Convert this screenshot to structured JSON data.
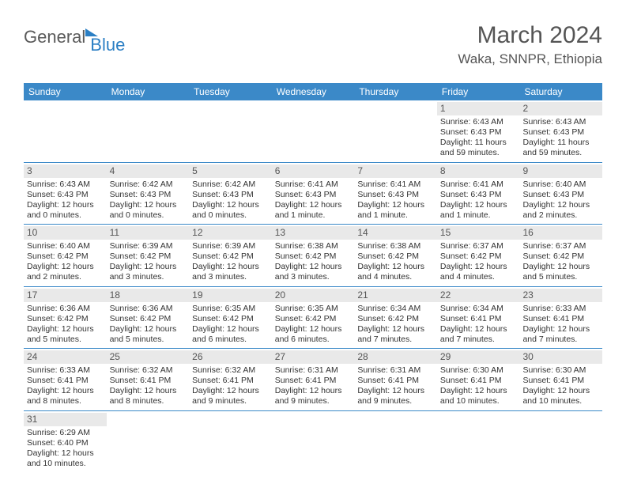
{
  "brand": {
    "part1": "General",
    "part2": "Blue"
  },
  "title": "March 2024",
  "location": "Waka, SNNPR, Ethiopia",
  "colors": {
    "header_bg": "#3b89c8",
    "header_text": "#ffffff",
    "daynum_bg": "#e9e9e9",
    "border": "#3b89c8",
    "text": "#333333",
    "title_text": "#555555"
  },
  "weekdays": [
    "Sunday",
    "Monday",
    "Tuesday",
    "Wednesday",
    "Thursday",
    "Friday",
    "Saturday"
  ],
  "weeks": [
    [
      {
        "n": "",
        "sr": "",
        "ss": "",
        "dl": ""
      },
      {
        "n": "",
        "sr": "",
        "ss": "",
        "dl": ""
      },
      {
        "n": "",
        "sr": "",
        "ss": "",
        "dl": ""
      },
      {
        "n": "",
        "sr": "",
        "ss": "",
        "dl": ""
      },
      {
        "n": "",
        "sr": "",
        "ss": "",
        "dl": ""
      },
      {
        "n": "1",
        "sr": "Sunrise: 6:43 AM",
        "ss": "Sunset: 6:43 PM",
        "dl": "Daylight: 11 hours and 59 minutes."
      },
      {
        "n": "2",
        "sr": "Sunrise: 6:43 AM",
        "ss": "Sunset: 6:43 PM",
        "dl": "Daylight: 11 hours and 59 minutes."
      }
    ],
    [
      {
        "n": "3",
        "sr": "Sunrise: 6:43 AM",
        "ss": "Sunset: 6:43 PM",
        "dl": "Daylight: 12 hours and 0 minutes."
      },
      {
        "n": "4",
        "sr": "Sunrise: 6:42 AM",
        "ss": "Sunset: 6:43 PM",
        "dl": "Daylight: 12 hours and 0 minutes."
      },
      {
        "n": "5",
        "sr": "Sunrise: 6:42 AM",
        "ss": "Sunset: 6:43 PM",
        "dl": "Daylight: 12 hours and 0 minutes."
      },
      {
        "n": "6",
        "sr": "Sunrise: 6:41 AM",
        "ss": "Sunset: 6:43 PM",
        "dl": "Daylight: 12 hours and 1 minute."
      },
      {
        "n": "7",
        "sr": "Sunrise: 6:41 AM",
        "ss": "Sunset: 6:43 PM",
        "dl": "Daylight: 12 hours and 1 minute."
      },
      {
        "n": "8",
        "sr": "Sunrise: 6:41 AM",
        "ss": "Sunset: 6:43 PM",
        "dl": "Daylight: 12 hours and 1 minute."
      },
      {
        "n": "9",
        "sr": "Sunrise: 6:40 AM",
        "ss": "Sunset: 6:43 PM",
        "dl": "Daylight: 12 hours and 2 minutes."
      }
    ],
    [
      {
        "n": "10",
        "sr": "Sunrise: 6:40 AM",
        "ss": "Sunset: 6:42 PM",
        "dl": "Daylight: 12 hours and 2 minutes."
      },
      {
        "n": "11",
        "sr": "Sunrise: 6:39 AM",
        "ss": "Sunset: 6:42 PM",
        "dl": "Daylight: 12 hours and 3 minutes."
      },
      {
        "n": "12",
        "sr": "Sunrise: 6:39 AM",
        "ss": "Sunset: 6:42 PM",
        "dl": "Daylight: 12 hours and 3 minutes."
      },
      {
        "n": "13",
        "sr": "Sunrise: 6:38 AM",
        "ss": "Sunset: 6:42 PM",
        "dl": "Daylight: 12 hours and 3 minutes."
      },
      {
        "n": "14",
        "sr": "Sunrise: 6:38 AM",
        "ss": "Sunset: 6:42 PM",
        "dl": "Daylight: 12 hours and 4 minutes."
      },
      {
        "n": "15",
        "sr": "Sunrise: 6:37 AM",
        "ss": "Sunset: 6:42 PM",
        "dl": "Daylight: 12 hours and 4 minutes."
      },
      {
        "n": "16",
        "sr": "Sunrise: 6:37 AM",
        "ss": "Sunset: 6:42 PM",
        "dl": "Daylight: 12 hours and 5 minutes."
      }
    ],
    [
      {
        "n": "17",
        "sr": "Sunrise: 6:36 AM",
        "ss": "Sunset: 6:42 PM",
        "dl": "Daylight: 12 hours and 5 minutes."
      },
      {
        "n": "18",
        "sr": "Sunrise: 6:36 AM",
        "ss": "Sunset: 6:42 PM",
        "dl": "Daylight: 12 hours and 5 minutes."
      },
      {
        "n": "19",
        "sr": "Sunrise: 6:35 AM",
        "ss": "Sunset: 6:42 PM",
        "dl": "Daylight: 12 hours and 6 minutes."
      },
      {
        "n": "20",
        "sr": "Sunrise: 6:35 AM",
        "ss": "Sunset: 6:42 PM",
        "dl": "Daylight: 12 hours and 6 minutes."
      },
      {
        "n": "21",
        "sr": "Sunrise: 6:34 AM",
        "ss": "Sunset: 6:42 PM",
        "dl": "Daylight: 12 hours and 7 minutes."
      },
      {
        "n": "22",
        "sr": "Sunrise: 6:34 AM",
        "ss": "Sunset: 6:41 PM",
        "dl": "Daylight: 12 hours and 7 minutes."
      },
      {
        "n": "23",
        "sr": "Sunrise: 6:33 AM",
        "ss": "Sunset: 6:41 PM",
        "dl": "Daylight: 12 hours and 7 minutes."
      }
    ],
    [
      {
        "n": "24",
        "sr": "Sunrise: 6:33 AM",
        "ss": "Sunset: 6:41 PM",
        "dl": "Daylight: 12 hours and 8 minutes."
      },
      {
        "n": "25",
        "sr": "Sunrise: 6:32 AM",
        "ss": "Sunset: 6:41 PM",
        "dl": "Daylight: 12 hours and 8 minutes."
      },
      {
        "n": "26",
        "sr": "Sunrise: 6:32 AM",
        "ss": "Sunset: 6:41 PM",
        "dl": "Daylight: 12 hours and 9 minutes."
      },
      {
        "n": "27",
        "sr": "Sunrise: 6:31 AM",
        "ss": "Sunset: 6:41 PM",
        "dl": "Daylight: 12 hours and 9 minutes."
      },
      {
        "n": "28",
        "sr": "Sunrise: 6:31 AM",
        "ss": "Sunset: 6:41 PM",
        "dl": "Daylight: 12 hours and 9 minutes."
      },
      {
        "n": "29",
        "sr": "Sunrise: 6:30 AM",
        "ss": "Sunset: 6:41 PM",
        "dl": "Daylight: 12 hours and 10 minutes."
      },
      {
        "n": "30",
        "sr": "Sunrise: 6:30 AM",
        "ss": "Sunset: 6:41 PM",
        "dl": "Daylight: 12 hours and 10 minutes."
      }
    ],
    [
      {
        "n": "31",
        "sr": "Sunrise: 6:29 AM",
        "ss": "Sunset: 6:40 PM",
        "dl": "Daylight: 12 hours and 10 minutes."
      },
      {
        "n": "",
        "sr": "",
        "ss": "",
        "dl": ""
      },
      {
        "n": "",
        "sr": "",
        "ss": "",
        "dl": ""
      },
      {
        "n": "",
        "sr": "",
        "ss": "",
        "dl": ""
      },
      {
        "n": "",
        "sr": "",
        "ss": "",
        "dl": ""
      },
      {
        "n": "",
        "sr": "",
        "ss": "",
        "dl": ""
      },
      {
        "n": "",
        "sr": "",
        "ss": "",
        "dl": ""
      }
    ]
  ]
}
